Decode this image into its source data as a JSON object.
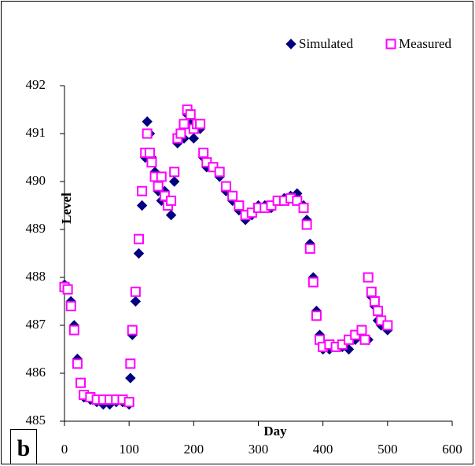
{
  "chart_data": {
    "type": "scatter",
    "label": "b",
    "xlabel": "Day",
    "ylabel": "Level",
    "xlim": [
      0,
      600
    ],
    "ylim": [
      485,
      492
    ],
    "xticks": [
      0,
      100,
      200,
      300,
      400,
      500,
      600
    ],
    "yticks": [
      485,
      486,
      487,
      488,
      489,
      490,
      491,
      492
    ],
    "series": [
      {
        "name": "Simulated",
        "color": "#000080",
        "marker": "diamond",
        "x": [
          0,
          5,
          10,
          15,
          20,
          25,
          30,
          40,
          50,
          60,
          70,
          80,
          90,
          100,
          102,
          105,
          110,
          115,
          120,
          125,
          128,
          132,
          135,
          140,
          145,
          150,
          155,
          160,
          165,
          170,
          175,
          180,
          185,
          190,
          195,
          200,
          205,
          210,
          215,
          220,
          230,
          240,
          250,
          260,
          270,
          280,
          290,
          300,
          310,
          320,
          330,
          340,
          350,
          360,
          370,
          375,
          380,
          385,
          390,
          395,
          400,
          410,
          420,
          430,
          440,
          450,
          460,
          470,
          475,
          480,
          485,
          490,
          500
        ],
        "values": [
          487.85,
          487.8,
          487.5,
          487,
          486.3,
          485.8,
          485.5,
          485.45,
          485.4,
          485.35,
          485.35,
          485.4,
          485.4,
          485.35,
          485.9,
          486.8,
          487.5,
          488.5,
          489.5,
          490.5,
          491.25,
          491,
          490.5,
          490.2,
          489.8,
          489.6,
          489.8,
          489.5,
          489.3,
          490,
          490.8,
          491,
          490.9,
          491.4,
          491.2,
          490.9,
          491.1,
          491.1,
          490.5,
          490.3,
          490.3,
          490.1,
          489.8,
          489.6,
          489.4,
          489.2,
          489.3,
          489.5,
          489.5,
          489.45,
          489.6,
          489.65,
          489.7,
          489.75,
          489.5,
          489.2,
          488.7,
          488,
          487.3,
          486.8,
          486.5,
          486.5,
          486.55,
          486.55,
          486.5,
          486.7,
          486.8,
          486.7,
          487.6,
          487.4,
          487.1,
          487,
          486.9
        ]
      },
      {
        "name": "Measured",
        "color": "#ff00ff",
        "marker": "square",
        "x": [
          0,
          5,
          10,
          15,
          20,
          25,
          30,
          40,
          50,
          60,
          70,
          80,
          90,
          100,
          102,
          105,
          110,
          115,
          120,
          125,
          128,
          132,
          135,
          140,
          145,
          150,
          155,
          160,
          165,
          170,
          175,
          180,
          185,
          190,
          195,
          200,
          205,
          210,
          215,
          220,
          230,
          240,
          250,
          260,
          270,
          280,
          290,
          300,
          310,
          320,
          330,
          340,
          350,
          360,
          370,
          375,
          380,
          385,
          390,
          395,
          400,
          410,
          420,
          430,
          440,
          450,
          460,
          465,
          470,
          475,
          480,
          485,
          490,
          500
        ],
        "values": [
          487.8,
          487.75,
          487.4,
          486.9,
          486.2,
          485.8,
          485.55,
          485.5,
          485.45,
          485.45,
          485.45,
          485.45,
          485.45,
          485.4,
          486.2,
          486.9,
          487.7,
          488.8,
          489.8,
          490.6,
          491,
          490.6,
          490.4,
          490.1,
          489.9,
          490.1,
          489.7,
          489.5,
          489.6,
          490.2,
          490.9,
          491,
          491.2,
          491.5,
          491.4,
          491.1,
          491.2,
          491.2,
          490.6,
          490.4,
          490.3,
          490.2,
          489.9,
          489.7,
          489.5,
          489.3,
          489.35,
          489.45,
          489.45,
          489.5,
          489.6,
          489.6,
          489.65,
          489.6,
          489.45,
          489.1,
          488.6,
          487.9,
          487.2,
          486.7,
          486.55,
          486.6,
          486.55,
          486.6,
          486.7,
          486.8,
          486.9,
          486.7,
          488,
          487.7,
          487.5,
          487.3,
          487.1,
          487
        ]
      }
    ]
  }
}
